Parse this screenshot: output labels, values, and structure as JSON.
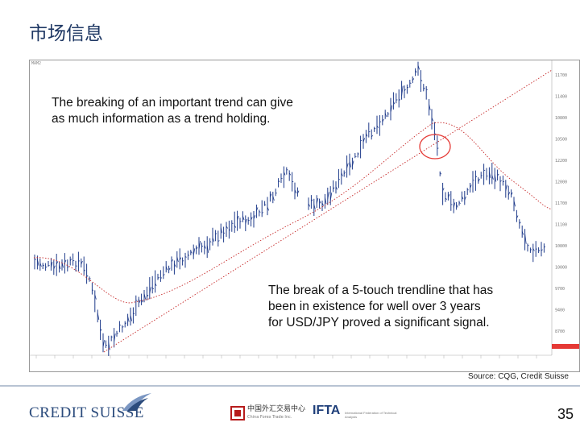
{
  "slide": {
    "title": "市场信息",
    "page_number": "35"
  },
  "chart": {
    "corner_code": "MAM2",
    "annotation_top": [
      "The breaking of an important trend can give",
      "as much information as a trend holding."
    ],
    "annotation_bottom": [
      "The break of a 5-touch trendline that has",
      "been in existence for well over 3 years",
      "for USD/JPY proved a significant signal."
    ],
    "source": "Source: CQG, Credit Suisse",
    "price_axis": [
      "11700",
      "11400",
      "10800",
      "10500",
      "12200",
      "12000",
      "11700",
      "11100",
      "10800",
      "10000",
      "9700",
      "9400",
      "8700"
    ],
    "colors": {
      "price_bars": "#1e3a8a",
      "trendline": "#c62828",
      "moving_average": "#c62828",
      "highlight_circle": "#e53935"
    }
  },
  "footer": {
    "brand": "CREDIT SUISSE",
    "partner_cn": "中国外汇交易中心",
    "partner_en": "China Forex Trade Inc.",
    "ifta": "IFTA",
    "ifta_sub": "International Federation of Technical Analysts"
  }
}
